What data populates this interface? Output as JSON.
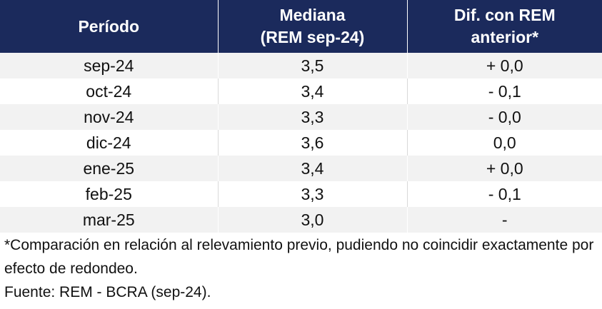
{
  "table": {
    "headers": [
      {
        "line1": "Período",
        "line2": ""
      },
      {
        "line1": "Mediana",
        "line2": "(REM sep-24)"
      },
      {
        "line1": "Dif. con REM",
        "line2": "anterior*"
      }
    ],
    "rows": [
      {
        "periodo": "sep-24",
        "mediana": "3,5",
        "dif": "+ 0,0"
      },
      {
        "periodo": "oct-24",
        "mediana": "3,4",
        "dif": "- 0,1"
      },
      {
        "periodo": "nov-24",
        "mediana": "3,3",
        "dif": "- 0,0"
      },
      {
        "periodo": "dic-24",
        "mediana": "3,6",
        "dif": "0,0"
      },
      {
        "periodo": "ene-25",
        "mediana": "3,4",
        "dif": "+ 0,0"
      },
      {
        "periodo": "feb-25",
        "mediana": "3,3",
        "dif": "- 0,1"
      },
      {
        "periodo": "mar-25",
        "mediana": "3,0",
        "dif": "-"
      }
    ]
  },
  "notes": {
    "footnote": "*Comparación en relación al relevamiento previo, pudiendo no coincidir exactamente por efecto de redondeo.",
    "source": "Fuente: REM - BCRA (sep-24)."
  },
  "colors": {
    "header_bg": "#1b2a5c",
    "header_text": "#ffffff",
    "stripe": "#f2f2f2"
  }
}
